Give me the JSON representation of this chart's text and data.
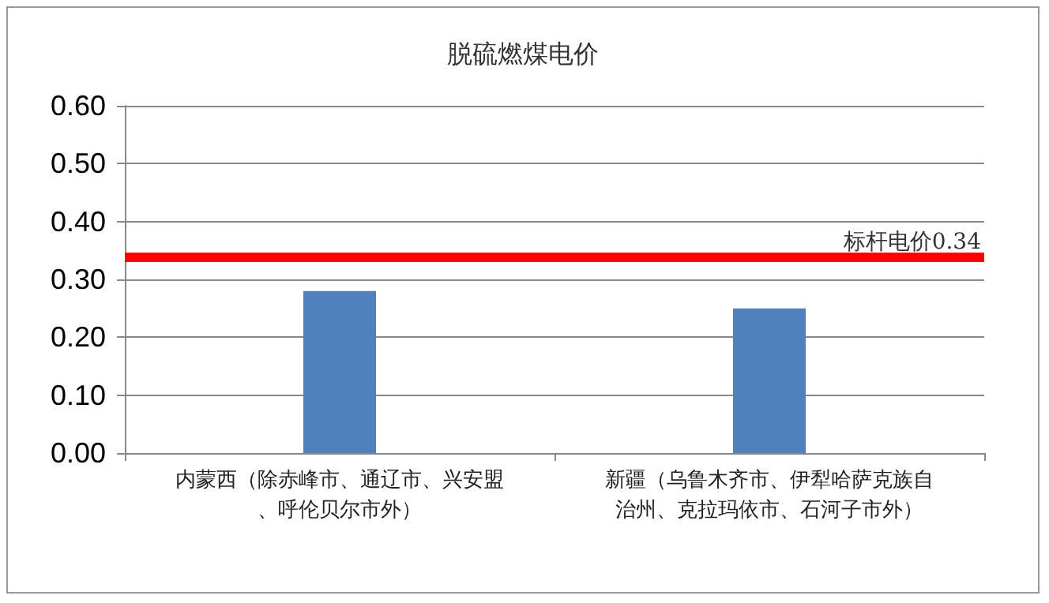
{
  "chart_data": {
    "type": "bar",
    "title": "脱硫燃煤电价",
    "categories": [
      "内蒙西（除赤峰市、通辽市、兴安盟、呼伦贝尔市外）",
      "新疆（乌鲁木齐市、伊犁哈萨克族自治州、克拉玛依市、石河子市外）"
    ],
    "values": [
      0.28,
      0.25
    ],
    "color": "#4f81bd",
    "ylim": [
      0,
      0.6
    ],
    "yticks": [
      {
        "value": 0,
        "label": "0.00"
      },
      {
        "value": 0.1,
        "label": "0.10"
      },
      {
        "value": 0.2,
        "label": "0.20"
      },
      {
        "value": 0.3,
        "label": "0.30"
      },
      {
        "value": 0.4,
        "label": "0.40"
      },
      {
        "value": 0.5,
        "label": "0.50"
      },
      {
        "value": 0.6,
        "label": "0.60"
      }
    ],
    "ref_lines": [
      {
        "axis": "y",
        "value": 0.34,
        "label": "标杆电价0.34",
        "color": "#ff0000"
      }
    ],
    "grid": "y"
  }
}
